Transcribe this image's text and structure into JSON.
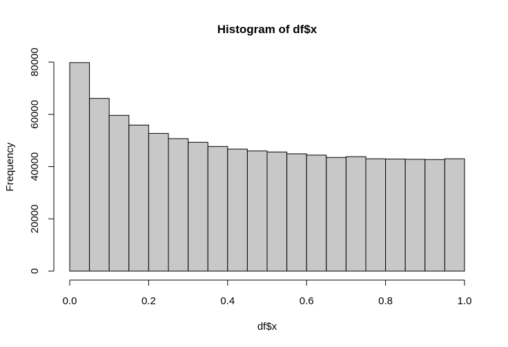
{
  "chart_data": {
    "type": "bar",
    "title": "Histogram of df$x",
    "xlabel": "df$x",
    "ylabel": "Frequency",
    "bin_edges": [
      0.0,
      0.05,
      0.1,
      0.15,
      0.2,
      0.25,
      0.3,
      0.35,
      0.4,
      0.45,
      0.5,
      0.55,
      0.6,
      0.65,
      0.7,
      0.75,
      0.8,
      0.85,
      0.9,
      0.95,
      1.0
    ],
    "values": [
      79800,
      66100,
      59600,
      55900,
      52700,
      50700,
      49300,
      47700,
      46700,
      46000,
      45600,
      44900,
      44400,
      43500,
      43800,
      43000,
      42900,
      42800,
      42700,
      43000
    ],
    "xlim": [
      0,
      1
    ],
    "ylim": [
      0,
      80000
    ],
    "x_ticks": [
      0.0,
      0.2,
      0.4,
      0.6,
      0.8,
      1.0
    ],
    "x_tick_labels": [
      "0.0",
      "0.2",
      "0.4",
      "0.6",
      "0.8",
      "1.0"
    ],
    "y_ticks": [
      0,
      20000,
      40000,
      60000,
      80000
    ],
    "y_tick_labels": [
      "0",
      "20000",
      "40000",
      "60000",
      "80000"
    ],
    "bar_color": "#c8c8c8",
    "grid": false
  }
}
